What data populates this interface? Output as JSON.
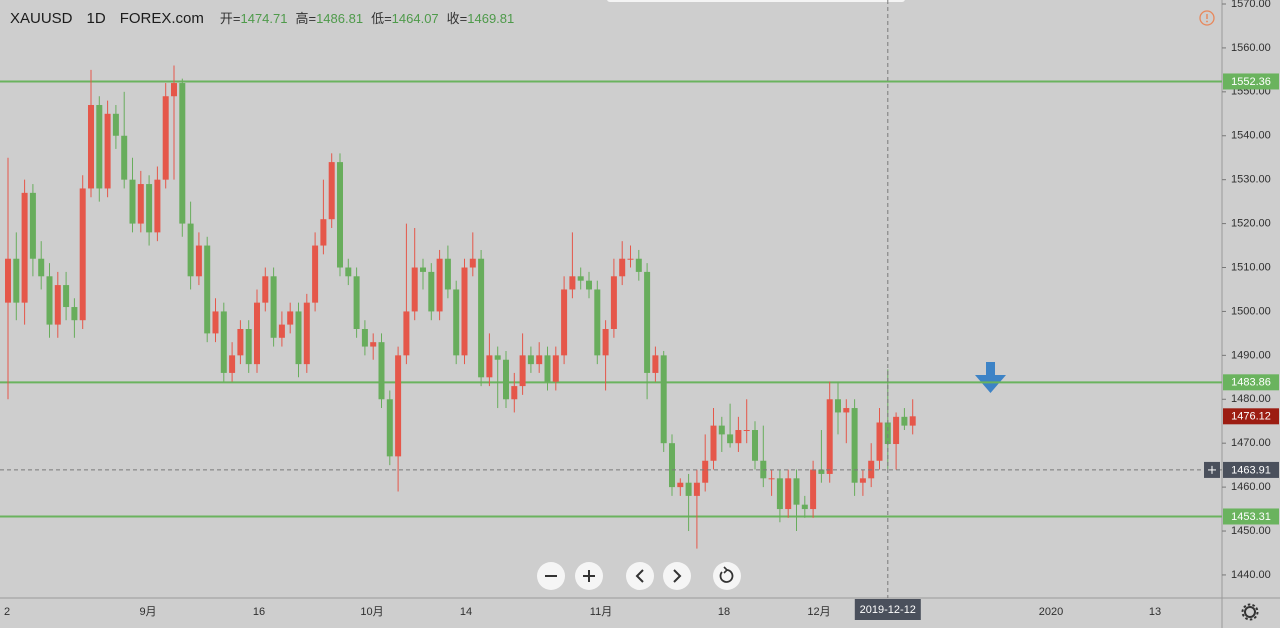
{
  "chart_data": {
    "type": "candlestick",
    "symbol": "XAUUSD",
    "interval": "1D",
    "source": "FOREX.com",
    "ohlc_labels": [
      "开=",
      "高=",
      "低=",
      "收="
    ],
    "up_color": "#e5574a",
    "down_color": "#68ad5c",
    "level_color": "#6ab35e",
    "levels": [
      1552.36,
      1483.86,
      1453.31
    ],
    "ylim": [
      1434.75,
      1570.91
    ],
    "yticks": [
      {
        "value": 1440,
        "label": "1440.00"
      },
      {
        "value": 1450,
        "label": "1450.00"
      },
      {
        "value": 1460,
        "label": "1460.00"
      },
      {
        "value": 1470,
        "label": "1470.00"
      },
      {
        "value": 1480,
        "label": "1480.00"
      },
      {
        "value": 1490,
        "label": "1490.00"
      },
      {
        "value": 1500,
        "label": "1500.00"
      },
      {
        "value": 1510,
        "label": "1510.00"
      },
      {
        "value": 1520,
        "label": "1520.00"
      },
      {
        "value": 1530,
        "label": "1530.00"
      },
      {
        "value": 1540,
        "label": "1540.00"
      },
      {
        "value": 1550,
        "label": "1550.00"
      },
      {
        "value": 1560,
        "label": "1560.00"
      },
      {
        "value": 1570,
        "label": "1570.00"
      }
    ],
    "x_labels": [
      "2",
      "9月",
      "16",
      "10月",
      "14",
      "11月",
      "18",
      "12月",
      "2020",
      "13"
    ],
    "crosshair": {
      "date": "2019-12-12",
      "price": 1463.91
    },
    "candles": [
      [
        1502,
        1535,
        1480,
        1512
      ],
      [
        1512,
        1518,
        1498,
        1502
      ],
      [
        1502,
        1530,
        1497,
        1527
      ],
      [
        1527,
        1529,
        1508,
        1512
      ],
      [
        1512,
        1516,
        1505,
        1508
      ],
      [
        1508,
        1511,
        1494,
        1497
      ],
      [
        1497,
        1509,
        1494,
        1506
      ],
      [
        1506,
        1509,
        1498,
        1501
      ],
      [
        1501,
        1503,
        1494,
        1498
      ],
      [
        1498,
        1531,
        1496,
        1528
      ],
      [
        1528,
        1555,
        1526,
        1547
      ],
      [
        1547,
        1549,
        1525,
        1528
      ],
      [
        1528,
        1548,
        1526,
        1545
      ],
      [
        1545,
        1547,
        1537,
        1540
      ],
      [
        1540,
        1550,
        1528,
        1530
      ],
      [
        1530,
        1535,
        1518,
        1520
      ],
      [
        1520,
        1532,
        1518,
        1529
      ],
      [
        1529,
        1531,
        1515,
        1518
      ],
      [
        1518,
        1533,
        1516,
        1530
      ],
      [
        1530,
        1552,
        1528,
        1549
      ],
      [
        1549,
        1556,
        1530,
        1552
      ],
      [
        1552,
        1553,
        1517,
        1520
      ],
      [
        1520,
        1525,
        1505,
        1508
      ],
      [
        1508,
        1518,
        1506,
        1515
      ],
      [
        1515,
        1517,
        1493,
        1495
      ],
      [
        1495,
        1503,
        1493,
        1500
      ],
      [
        1500,
        1502,
        1484,
        1486
      ],
      [
        1486,
        1493,
        1484,
        1490
      ],
      [
        1490,
        1498,
        1488,
        1496
      ],
      [
        1496,
        1498,
        1486,
        1488
      ],
      [
        1488,
        1505,
        1486,
        1502
      ],
      [
        1502,
        1510,
        1500,
        1508
      ],
      [
        1508,
        1510,
        1492,
        1494
      ],
      [
        1494,
        1500,
        1492,
        1497
      ],
      [
        1497,
        1502,
        1495,
        1500
      ],
      [
        1500,
        1502,
        1485,
        1488
      ],
      [
        1488,
        1504,
        1486,
        1502
      ],
      [
        1502,
        1518,
        1500,
        1515
      ],
      [
        1515,
        1530,
        1513,
        1521
      ],
      [
        1521,
        1536,
        1519,
        1534
      ],
      [
        1534,
        1536,
        1508,
        1510
      ],
      [
        1510,
        1512,
        1506,
        1508
      ],
      [
        1508,
        1510,
        1494,
        1496
      ],
      [
        1496,
        1498,
        1490,
        1492
      ],
      [
        1492,
        1495,
        1489,
        1493
      ],
      [
        1493,
        1495,
        1478,
        1480
      ],
      [
        1480,
        1482,
        1465,
        1467
      ],
      [
        1467,
        1492,
        1459,
        1490
      ],
      [
        1490,
        1520,
        1488,
        1500
      ],
      [
        1500,
        1519,
        1498,
        1510
      ],
      [
        1510,
        1512,
        1505,
        1509
      ],
      [
        1509,
        1511,
        1498,
        1500
      ],
      [
        1500,
        1514,
        1498,
        1512
      ],
      [
        1512,
        1515,
        1503,
        1505
      ],
      [
        1505,
        1507,
        1488,
        1490
      ],
      [
        1490,
        1512,
        1488,
        1510
      ],
      [
        1510,
        1518,
        1508,
        1512
      ],
      [
        1512,
        1514,
        1483,
        1485
      ],
      [
        1485,
        1495,
        1483,
        1490
      ],
      [
        1490,
        1492,
        1478,
        1489
      ],
      [
        1489,
        1491,
        1478,
        1480
      ],
      [
        1480,
        1486,
        1477,
        1483
      ],
      [
        1483,
        1495,
        1481,
        1490
      ],
      [
        1490,
        1492,
        1486,
        1488
      ],
      [
        1488,
        1493,
        1486,
        1490
      ],
      [
        1490,
        1492,
        1482,
        1484
      ],
      [
        1484,
        1492,
        1482,
        1490
      ],
      [
        1490,
        1508,
        1488,
        1505
      ],
      [
        1505,
        1518,
        1503,
        1508
      ],
      [
        1508,
        1510,
        1505,
        1507
      ],
      [
        1507,
        1509,
        1503,
        1505
      ],
      [
        1505,
        1507,
        1488,
        1490
      ],
      [
        1490,
        1498,
        1482,
        1496
      ],
      [
        1496,
        1512,
        1494,
        1508
      ],
      [
        1508,
        1516,
        1506,
        1512
      ],
      [
        1512,
        1515,
        1510,
        1512
      ],
      [
        1512,
        1514,
        1507,
        1509
      ],
      [
        1509,
        1511,
        1480,
        1486
      ],
      [
        1486,
        1492,
        1484,
        1490
      ],
      [
        1490,
        1491,
        1468,
        1470
      ],
      [
        1470,
        1472,
        1458,
        1460
      ],
      [
        1460,
        1462,
        1458,
        1461
      ],
      [
        1461,
        1463,
        1450,
        1458
      ],
      [
        1458,
        1464,
        1446,
        1461
      ],
      [
        1461,
        1472,
        1459,
        1466
      ],
      [
        1466,
        1478,
        1464,
        1474
      ],
      [
        1474,
        1476,
        1468,
        1472
      ],
      [
        1472,
        1479,
        1469,
        1470
      ],
      [
        1470,
        1476,
        1468,
        1473
      ],
      [
        1473,
        1480,
        1470,
        1473
      ],
      [
        1473,
        1475,
        1464,
        1466
      ],
      [
        1466,
        1474,
        1460,
        1462
      ],
      [
        1462,
        1464,
        1458,
        1462
      ],
      [
        1462,
        1464,
        1452,
        1455
      ],
      [
        1455,
        1464,
        1453,
        1462
      ],
      [
        1462,
        1464,
        1450,
        1456
      ],
      [
        1456,
        1458,
        1453,
        1455
      ],
      [
        1455,
        1466,
        1453,
        1464
      ],
      [
        1464,
        1473,
        1461,
        1463
      ],
      [
        1463,
        1484,
        1461,
        1480
      ],
      [
        1480,
        1484,
        1472,
        1477
      ],
      [
        1477,
        1480,
        1470,
        1478
      ],
      [
        1478,
        1480,
        1458,
        1461
      ],
      [
        1461,
        1464,
        1458,
        1462
      ],
      [
        1462,
        1470,
        1460,
        1466
      ],
      [
        1466,
        1478,
        1464,
        1474.71
      ],
      [
        1474.71,
        1486.81,
        1464.07,
        1469.81
      ],
      [
        1469.81,
        1477,
        1464,
        1476
      ],
      [
        1476,
        1478,
        1473,
        1474
      ],
      [
        1474,
        1480,
        1472,
        1476.12
      ]
    ]
  }
}
